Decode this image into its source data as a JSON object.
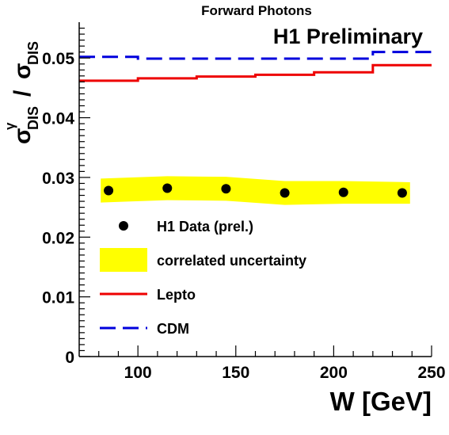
{
  "chart_data": {
    "type": "line",
    "title": "Forward Photons",
    "annotation": "H1 Preliminary",
    "xlabel": "W [GeV]",
    "ylabel_sigma": "σ",
    "ylabel_sup": "γ",
    "ylabel_sub": "DIS",
    "ylabel_slash": "/",
    "xlim": [
      70,
      250
    ],
    "ylim": [
      0,
      0.056
    ],
    "x_ticks": [
      100,
      150,
      200,
      250
    ],
    "x_tick_labels": [
      "100",
      "150",
      "200",
      "250"
    ],
    "y_ticks": [
      0,
      0.01,
      0.02,
      0.03,
      0.04,
      0.05
    ],
    "y_tick_labels": [
      "0",
      "0.01",
      "0.02",
      "0.03",
      "0.04",
      "0.05"
    ],
    "grid": false,
    "legend_position": "lower-left",
    "data_points": {
      "name": "H1 Data (prel.)",
      "x": [
        85,
        115,
        145,
        175,
        205,
        235
      ],
      "y": [
        0.0278,
        0.0282,
        0.0281,
        0.0274,
        0.0275,
        0.0274
      ],
      "color": "#000000"
    },
    "uncertainty_band": {
      "name": "correlated uncertainty",
      "x": [
        85,
        115,
        145,
        175,
        205,
        235
      ],
      "low": [
        0.0258,
        0.0262,
        0.0261,
        0.0254,
        0.0256,
        0.0256
      ],
      "high": [
        0.0298,
        0.0302,
        0.0301,
        0.0294,
        0.0294,
        0.0292
      ],
      "color": "#ffff00"
    },
    "series": [
      {
        "name": "Lepto",
        "style": "solid",
        "color": "#ee0000",
        "edges": [
          70,
          100,
          130,
          160,
          190,
          220,
          250
        ],
        "values": [
          0.0462,
          0.0466,
          0.0469,
          0.0472,
          0.0476,
          0.0488
        ]
      },
      {
        "name": "CDM",
        "style": "dashed",
        "color": "#0000dd",
        "edges": [
          70,
          100,
          130,
          160,
          190,
          220,
          250
        ],
        "values": [
          0.0502,
          0.0499,
          0.0499,
          0.0499,
          0.0499,
          0.051
        ]
      }
    ]
  }
}
